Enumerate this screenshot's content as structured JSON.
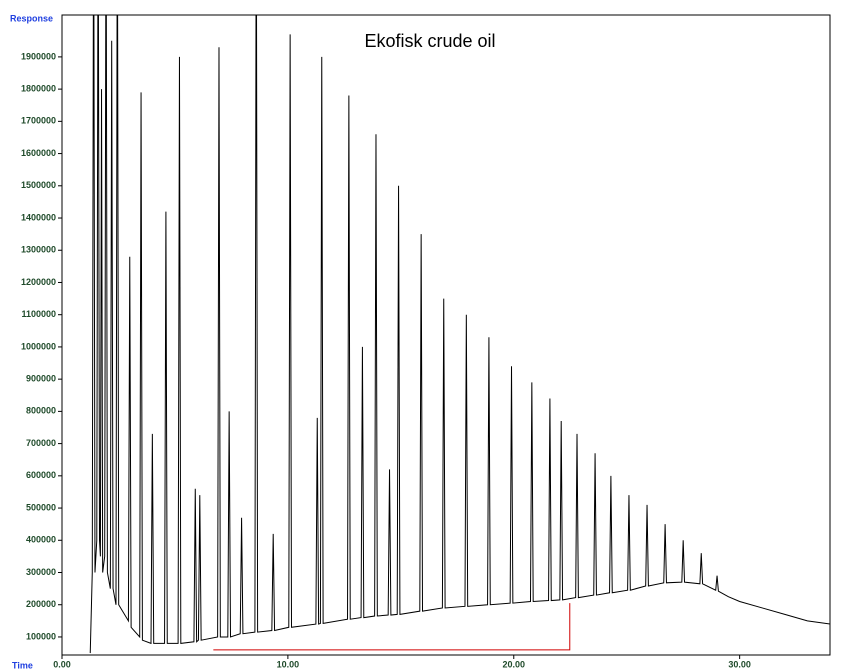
{
  "chart_data": {
    "type": "line",
    "title": "Ekofisk crude oil",
    "xlabel": "Time",
    "ylabel": "Response",
    "color": "#000000",
    "xlim": [
      0,
      34
    ],
    "ylim": [
      44000,
      2030000
    ],
    "xticks": [
      {
        "value": 0,
        "label": "0.00"
      },
      {
        "value": 10,
        "label": "10.00"
      },
      {
        "value": 20,
        "label": "20.00"
      },
      {
        "value": 30,
        "label": "30.00"
      }
    ],
    "yticks": [
      100000,
      200000,
      300000,
      400000,
      500000,
      600000,
      700000,
      800000,
      900000,
      1000000,
      1100000,
      1200000,
      1300000,
      1400000,
      1500000,
      1600000,
      1700000,
      1800000,
      1900000
    ],
    "x": [
      1.25,
      1.34,
      1.4,
      1.46,
      1.54,
      1.6,
      1.66,
      1.7,
      1.75,
      1.8,
      1.89,
      1.95,
      2.01,
      2.14,
      2.2,
      2.26,
      2.39,
      2.45,
      2.51,
      2.94,
      3.0,
      3.06,
      3.44,
      3.5,
      3.56,
      3.94,
      4.0,
      4.06,
      4.54,
      4.6,
      4.66,
      5.14,
      5.2,
      5.26,
      5.84,
      5.9,
      5.96,
      6.04,
      6.1,
      6.16,
      6.89,
      6.95,
      7.01,
      7.34,
      7.4,
      7.46,
      7.89,
      7.95,
      8.01,
      8.54,
      8.6,
      8.66,
      9.29,
      9.35,
      9.41,
      10.04,
      10.1,
      10.16,
      11.24,
      11.3,
      11.36,
      11.44,
      11.5,
      11.56,
      12.64,
      12.7,
      12.76,
      13.24,
      13.3,
      13.36,
      13.84,
      13.9,
      13.96,
      14.44,
      14.5,
      14.56,
      14.84,
      14.9,
      14.96,
      15.84,
      15.9,
      15.96,
      16.84,
      16.9,
      16.96,
      17.84,
      17.9,
      17.96,
      18.84,
      18.9,
      18.96,
      19.84,
      19.9,
      19.96,
      20.74,
      20.8,
      20.86,
      21.54,
      21.6,
      21.66,
      22.04,
      22.1,
      22.16,
      22.74,
      22.8,
      22.86,
      23.54,
      23.6,
      23.66,
      24.24,
      24.3,
      24.36,
      25.04,
      25.1,
      25.16,
      25.84,
      25.9,
      25.96,
      26.64,
      26.7,
      26.76,
      27.44,
      27.5,
      27.56,
      28.24,
      28.3,
      28.36,
      28.94,
      29.0,
      29.06,
      29.5,
      30,
      31,
      32,
      33,
      34
    ],
    "values": [
      50000,
      300000,
      2500000,
      300000,
      400000,
      2500000,
      400000,
      350000,
      1800000,
      300000,
      350000,
      2500000,
      300000,
      250000,
      1950000,
      250000,
      200000,
      2500000,
      200000,
      150000,
      1280000,
      130000,
      100000,
      1790000,
      90000,
      80000,
      730000,
      80000,
      80000,
      1420000,
      80000,
      80000,
      1900000,
      80000,
      85000,
      560000,
      85000,
      90000,
      540000,
      90000,
      100000,
      1930000,
      100000,
      100000,
      800000,
      100000,
      110000,
      470000,
      110000,
      115000,
      2500000,
      115000,
      120000,
      420000,
      120000,
      130000,
      1970000,
      130000,
      140000,
      780000,
      140000,
      142000,
      1900000,
      142000,
      155000,
      1780000,
      155000,
      160000,
      1000000,
      160000,
      165000,
      1660000,
      165000,
      168000,
      620000,
      168000,
      170000,
      1500000,
      170000,
      180000,
      1350000,
      180000,
      190000,
      1150000,
      190000,
      195000,
      1100000,
      195000,
      200000,
      1030000,
      200000,
      205000,
      940000,
      205000,
      210000,
      890000,
      210000,
      213000,
      840000,
      213000,
      215000,
      770000,
      215000,
      222000,
      730000,
      222000,
      230000,
      670000,
      230000,
      237000,
      600000,
      237000,
      245000,
      540000,
      245000,
      258000,
      510000,
      258000,
      268000,
      450000,
      268000,
      270000,
      400000,
      270000,
      265000,
      360000,
      265000,
      245000,
      290000,
      242000,
      225000,
      210000,
      190000,
      170000,
      150000,
      140000
    ],
    "baseline": {
      "color": "#d00000",
      "x": [
        6.7,
        22.48,
        22.48
      ],
      "values": [
        60000,
        60000,
        205000
      ]
    }
  }
}
